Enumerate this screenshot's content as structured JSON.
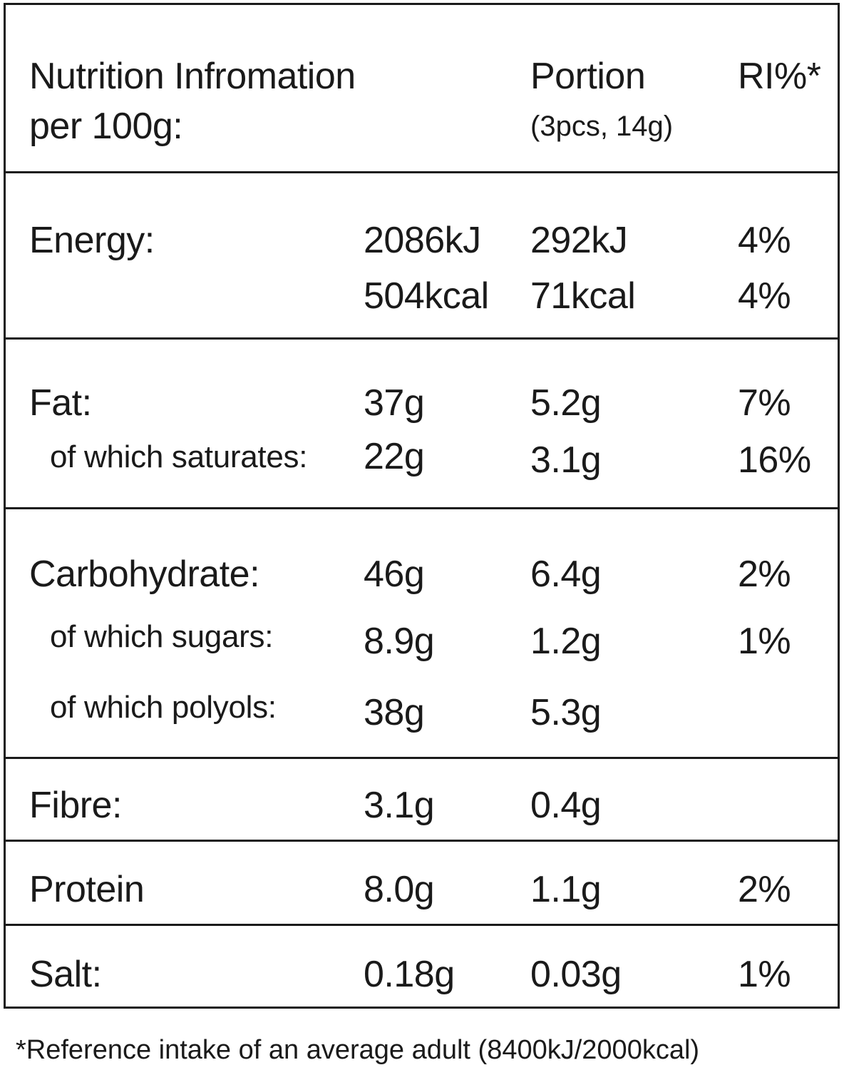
{
  "header": {
    "title_line1": "Nutrition Infromation",
    "title_line2": "per 100g:",
    "portion_label": "Portion",
    "portion_detail": "(3pcs, 14g)",
    "ri_label": "RI%*"
  },
  "rows": {
    "energy": {
      "label": "Energy:",
      "per100_kj": "2086kJ",
      "per100_kcal": "504kcal",
      "portion_kj": "292kJ",
      "portion_kcal": "71kcal",
      "ri_kj": "4%",
      "ri_kcal": "4%"
    },
    "fat": {
      "label": "Fat:",
      "per100": "37g",
      "portion": "5.2g",
      "ri": "7%"
    },
    "saturates": {
      "label": "of which saturates:",
      "per100": "22g",
      "portion": "3.1g",
      "ri": "16%"
    },
    "carbohydrate": {
      "label": "Carbohydrate:",
      "per100": "46g",
      "portion": "6.4g",
      "ri": "2%"
    },
    "sugars": {
      "label": "of which sugars:",
      "per100": "8.9g",
      "portion": "1.2g",
      "ri": "1%"
    },
    "polyols": {
      "label": "of which polyols:",
      "per100": "38g",
      "portion": "5.3g"
    },
    "fibre": {
      "label": "Fibre:",
      "per100": "3.1g",
      "portion": "0.4g"
    },
    "protein": {
      "label": "Protein",
      "per100": "8.0g",
      "portion": "1.1g",
      "ri": "2%"
    },
    "salt": {
      "label": "Salt:",
      "per100": "0.18g",
      "portion": "0.03g",
      "ri": "1%"
    }
  },
  "footnote": "*Reference intake of an average adult (8400kJ/2000kcal)"
}
